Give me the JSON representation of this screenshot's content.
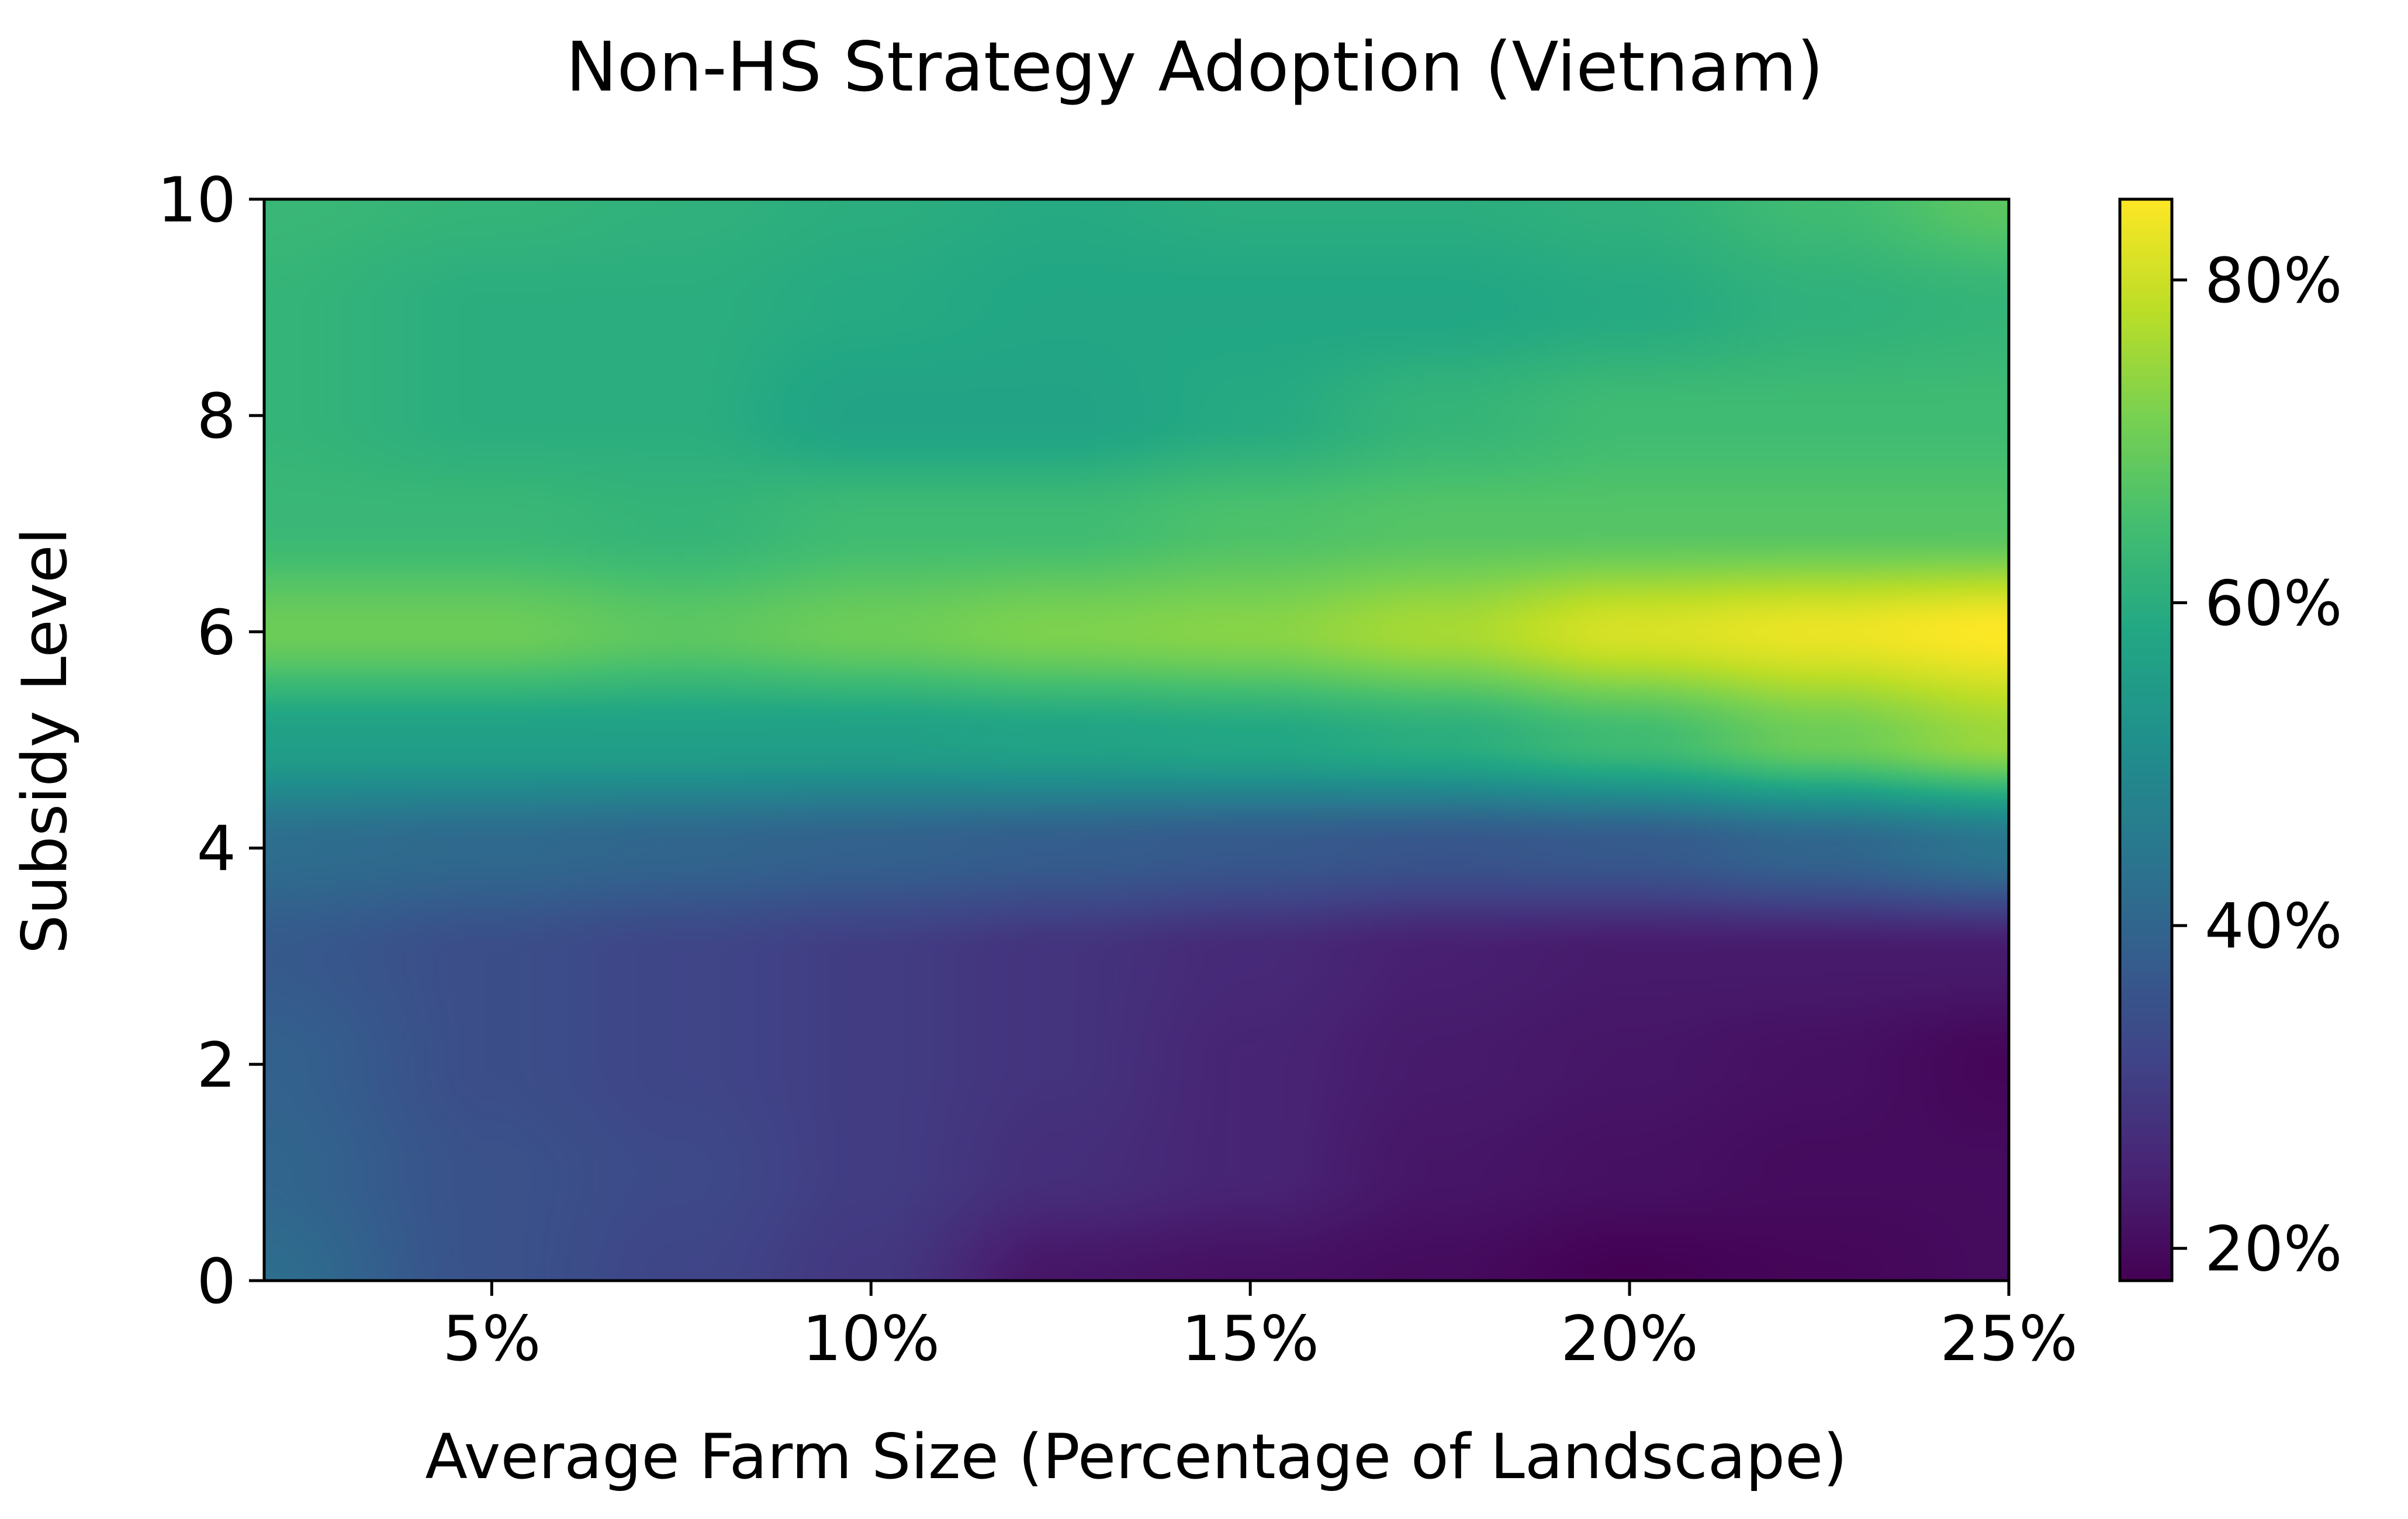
{
  "chart_data": {
    "type": "heatmap",
    "title": "Non-HS Strategy Adoption (Vietnam)",
    "xlabel": "Average Farm Size (Percentage of Landscape)",
    "ylabel": "Subsidy Level",
    "xlim": [
      2,
      25
    ],
    "ylim": [
      0,
      10
    ],
    "x_ticks": [
      {
        "value": 5,
        "label": "5%"
      },
      {
        "value": 10,
        "label": "10%"
      },
      {
        "value": 15,
        "label": "15%"
      },
      {
        "value": 20,
        "label": "20%"
      },
      {
        "value": 25,
        "label": "25%"
      }
    ],
    "y_ticks": [
      {
        "value": 0,
        "label": "0"
      },
      {
        "value": 2,
        "label": "2"
      },
      {
        "value": 4,
        "label": "4"
      },
      {
        "value": 6,
        "label": "6"
      },
      {
        "value": 8,
        "label": "8"
      },
      {
        "value": 10,
        "label": "10"
      }
    ],
    "colorbar": {
      "colormap": "viridis",
      "vmin": 18,
      "vmax": 85,
      "ticks": [
        {
          "value": 20,
          "label": "20%"
        },
        {
          "value": 40,
          "label": "40%"
        },
        {
          "value": 60,
          "label": "60%"
        },
        {
          "value": 80,
          "label": "80%"
        }
      ]
    },
    "x": [
      2,
      5,
      7.5,
      10,
      12.5,
      15,
      17.5,
      20,
      22.5,
      25
    ],
    "y": [
      0,
      1,
      2,
      3,
      4,
      5,
      6,
      7,
      8,
      9,
      10
    ],
    "z": [
      [
        42,
        35,
        32,
        29,
        22,
        21,
        20,
        18,
        19,
        20
      ],
      [
        40,
        35,
        33,
        30,
        27,
        25,
        22,
        21,
        20,
        20
      ],
      [
        39,
        34,
        32,
        30,
        28,
        25,
        23,
        22,
        21,
        19
      ],
      [
        37,
        34,
        32,
        30,
        28,
        26,
        24,
        23,
        23,
        23
      ],
      [
        42,
        41,
        40,
        39,
        38,
        37,
        36,
        37,
        40,
        44
      ],
      [
        56,
        56,
        56,
        56,
        57,
        58,
        60,
        64,
        70,
        75
      ],
      [
        70,
        70,
        68,
        70,
        72,
        73,
        76,
        81,
        83,
        85
      ],
      [
        63,
        63,
        62,
        64,
        64,
        66,
        67,
        67,
        67,
        67
      ],
      [
        62,
        60,
        60,
        57,
        57,
        59,
        62,
        64,
        64,
        64
      ],
      [
        62,
        60,
        60,
        59,
        58,
        58,
        58,
        59,
        61,
        62
      ],
      [
        63,
        62,
        61,
        60,
        59,
        60,
        60,
        61,
        64,
        68
      ]
    ]
  }
}
